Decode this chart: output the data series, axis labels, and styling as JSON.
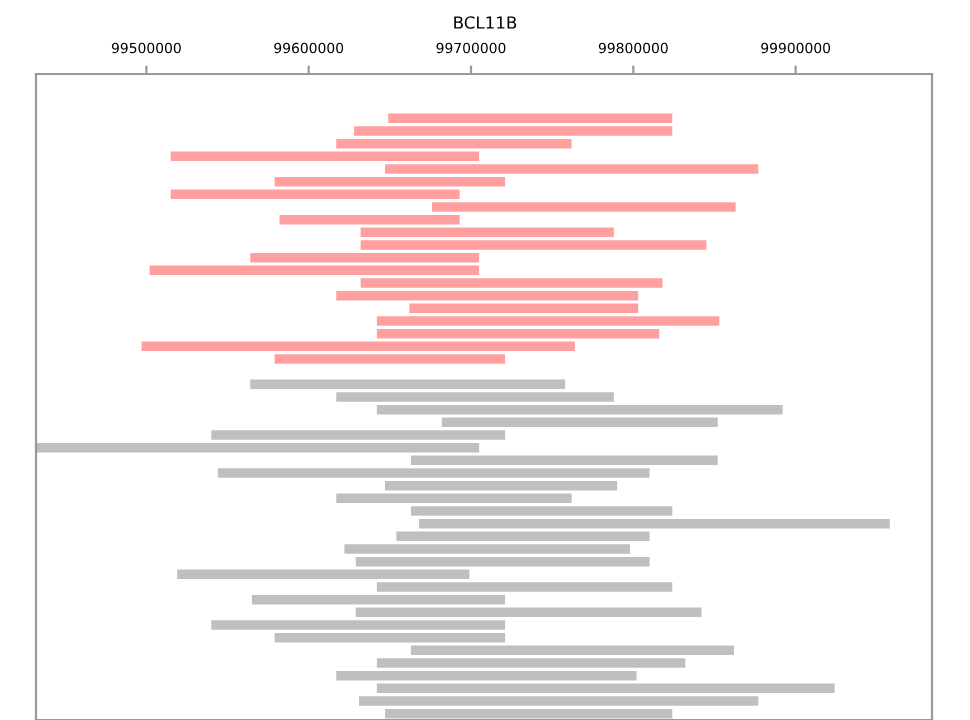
{
  "chart_data": {
    "type": "bar",
    "orientation": "horizontal",
    "title": "BCL11B",
    "categories": [
      null,
      null,
      null,
      null,
      null,
      null,
      null,
      null,
      null,
      null,
      null,
      null,
      null,
      null,
      null,
      null,
      null,
      null,
      null,
      null,
      null,
      null,
      null,
      null,
      null,
      null,
      null,
      null,
      null,
      null,
      null,
      null,
      null,
      null,
      null,
      null,
      null,
      null,
      null,
      null,
      null,
      null,
      null,
      null,
      null,
      null,
      null,
      null,
      null,
      null,
      null
    ],
    "base": [
      null,
      null,
      null,
      99649000,
      99628000,
      99617000,
      99515000,
      99647000,
      99579000,
      99515000,
      99676000,
      99582000,
      99632000,
      99632000,
      99564000,
      99502000,
      99632000,
      99617000,
      99662000,
      99642000,
      99642000,
      99497000,
      99579000,
      null,
      99564000,
      99617000,
      99642000,
      99682000,
      99540000,
      99432000,
      99663000,
      99544000,
      99647000,
      99617000,
      99663000,
      99668000,
      99654000,
      99622000,
      99629000,
      99519000,
      99642000,
      99565000,
      99629000,
      99540000,
      99579000,
      99663000,
      99642000,
      99617000,
      99642000,
      99631000,
      99647000
    ],
    "values": [
      null,
      null,
      null,
      175000,
      196000,
      145000,
      190000,
      230000,
      142000,
      178000,
      187000,
      111000,
      156000,
      213000,
      141000,
      203000,
      186000,
      186000,
      141000,
      211000,
      174000,
      267000,
      142000,
      null,
      194000,
      171000,
      250000,
      170000,
      181000,
      273000,
      189000,
      266000,
      143000,
      145000,
      161000,
      290000,
      156000,
      176000,
      181000,
      180000,
      182000,
      156000,
      213000,
      181000,
      142000,
      199000,
      190000,
      185000,
      282000,
      246000,
      177000
    ],
    "colors": [
      "#ff9f9f",
      "#ff9f9f",
      "#ff9f9f",
      "#ff9f9f",
      "#ff9f9f",
      "#ff9f9f",
      "#ff9f9f",
      "#ff9f9f",
      "#ff9f9f",
      "#ff9f9f",
      "#ff9f9f",
      "#ff9f9f",
      "#ff9f9f",
      "#ff9f9f",
      "#ff9f9f",
      "#ff9f9f",
      "#ff9f9f",
      "#ff9f9f",
      "#ff9f9f",
      "#ff9f9f",
      "#ff9f9f",
      "#ff9f9f",
      "#ff9f9f",
      "#bfbfbf",
      "#bfbfbf",
      "#bfbfbf",
      "#bfbfbf",
      "#bfbfbf",
      "#bfbfbf",
      "#bfbfbf",
      "#bfbfbf",
      "#bfbfbf",
      "#bfbfbf",
      "#bfbfbf",
      "#bfbfbf",
      "#bfbfbf",
      "#bfbfbf",
      "#bfbfbf",
      "#bfbfbf",
      "#bfbfbf",
      "#bfbfbf",
      "#bfbfbf",
      "#bfbfbf",
      "#bfbfbf",
      "#bfbfbf",
      "#bfbfbf",
      "#bfbfbf",
      "#bfbfbf",
      "#bfbfbf",
      "#bfbfbf",
      "#bfbfbf"
    ],
    "xlim": [
      99432000,
      99984000
    ],
    "xticks": [
      99500000,
      99600000,
      99700000,
      99800000,
      99900000
    ],
    "tick_labels": "x",
    "grid": false,
    "legend": false
  }
}
